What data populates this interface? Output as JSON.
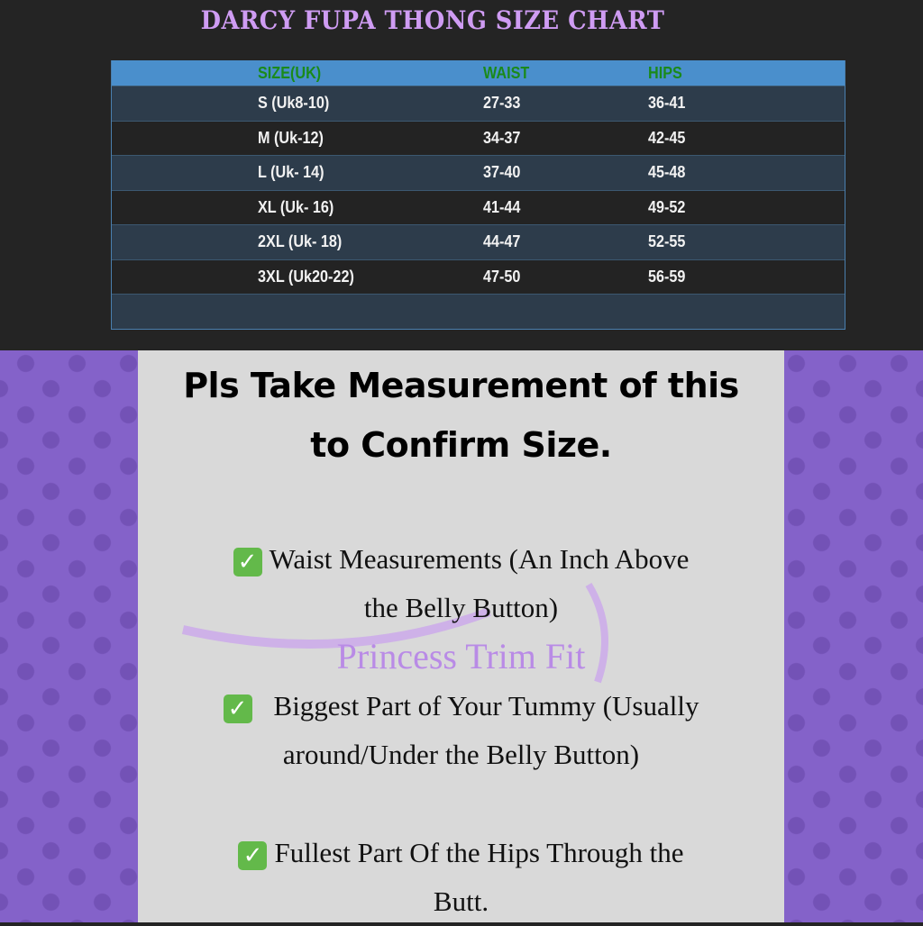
{
  "title": "DARCY FUPA THONG SIZE CHART",
  "table": {
    "headers": [
      "SIZE(UK)",
      "WAIST",
      "HIPS"
    ],
    "rows": [
      [
        "S (Uk8-10)",
        "27-33",
        "36-41"
      ],
      [
        "M (Uk-12)",
        "34-37",
        "42-45"
      ],
      [
        "L (Uk- 14)",
        "37-40",
        "45-48"
      ],
      [
        "XL (Uk- 16)",
        "41-44",
        "49-52"
      ],
      [
        "2XL (Uk- 18)",
        "44-47",
        "52-55"
      ],
      [
        "3XL (Uk20-22)",
        "47-50",
        "56-59"
      ]
    ]
  },
  "instructions": {
    "heading_line1": "Pls Take Measurement of this",
    "heading_line2": "to Confirm Size.",
    "items": [
      {
        "icon": "check-mark-icon",
        "line1": "Waist Measurements (An Inch Above",
        "line2": "the Belly Button)"
      },
      {
        "icon": "check-mark-icon",
        "line1": "Biggest Part of Your Tummy (Usually",
        "line2": "around/Under the Belly Button)"
      },
      {
        "icon": "check-mark-icon",
        "line1": "Fullest Part Of the Hips Through the",
        "line2": "Butt."
      }
    ]
  },
  "watermark": "Princess Trim Fit",
  "colors": {
    "title": "#cf9cf3",
    "header_bg": "#4a8fcc",
    "header_text": "#1a8a1a",
    "background_pattern": "#8462c9",
    "check": "#63b94a"
  }
}
